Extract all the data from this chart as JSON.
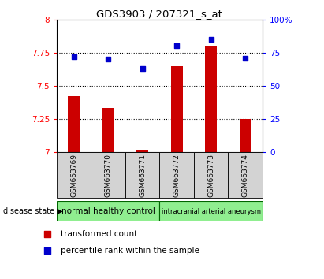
{
  "title": "GDS3903 / 207321_s_at",
  "samples": [
    "GSM663769",
    "GSM663770",
    "GSM663771",
    "GSM663772",
    "GSM663773",
    "GSM663774"
  ],
  "transformed_count": [
    7.42,
    7.33,
    7.02,
    7.65,
    7.8,
    7.25
  ],
  "percentile_rank": [
    72,
    70,
    63,
    80,
    85,
    71
  ],
  "ylim_left": [
    7,
    8
  ],
  "ylim_right": [
    0,
    100
  ],
  "yticks_left": [
    7,
    7.25,
    7.5,
    7.75,
    8
  ],
  "yticks_right": [
    0,
    25,
    50,
    75,
    100
  ],
  "ytick_labels_left": [
    "7",
    "7.25",
    "7.5",
    "7.75",
    "8"
  ],
  "ytick_labels_right": [
    "0",
    "25",
    "50",
    "75",
    "100%"
  ],
  "bar_color": "#cc0000",
  "scatter_color": "#0000cc",
  "bar_width": 0.35,
  "group1_label": "normal healthy control",
  "group2_label": "intracranial arterial aneurysm",
  "group1_indices": [
    0,
    1,
    2
  ],
  "group2_indices": [
    3,
    4,
    5
  ],
  "group1_color": "#90ee90",
  "group2_color": "#90ee90",
  "disease_state_label": "disease state",
  "legend_red_label": "transformed count",
  "legend_blue_label": "percentile rank within the sample",
  "bg_color": "#ffffff",
  "xticklabel_bg": "#d3d3d3",
  "dotted_gridlines": [
    7.25,
    7.5,
    7.75
  ]
}
